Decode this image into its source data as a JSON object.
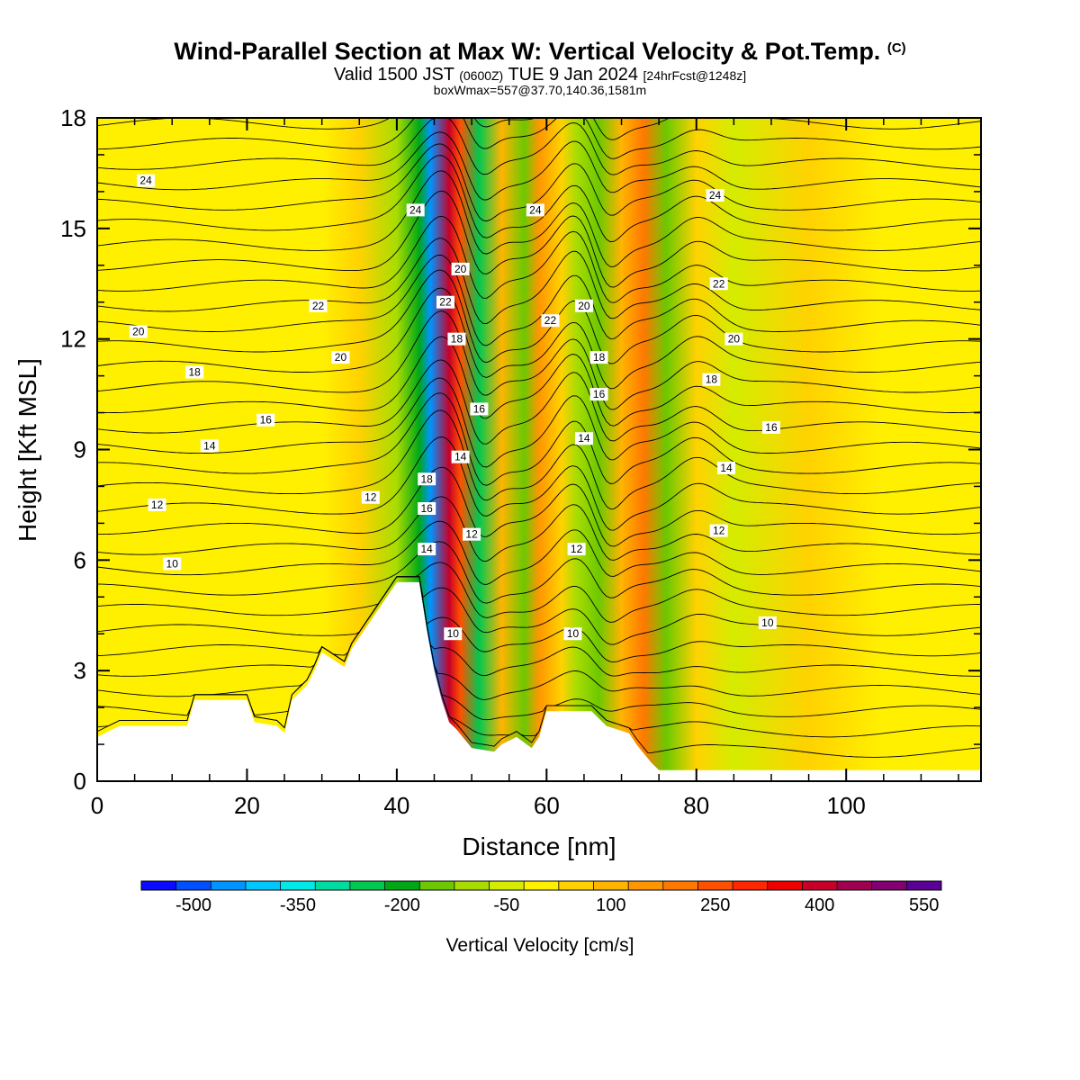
{
  "header": {
    "title": "Wind-Parallel Section at Max W: Vertical Velocity & Pot.Temp.",
    "copyright": "(C)",
    "valid_prefix": "Valid 1500 JST",
    "valid_zulu": "(0600Z)",
    "valid_date": "TUE 9 Jan 2024",
    "forecast": "[24hrFcst@1248z]",
    "box_info": "boxWmax=557@37.70,140.36,1581m"
  },
  "chart_data": {
    "type": "heatmap",
    "xlabel": "Distance [nm]",
    "ylabel": "Height [Kft MSL]",
    "xlim": [
      0,
      118
    ],
    "ylim": [
      0,
      18
    ],
    "x_ticks": [
      "0",
      "20",
      "40",
      "60",
      "80",
      "100"
    ],
    "y_ticks": [
      "0",
      "3",
      "6",
      "9",
      "12",
      "15",
      "18"
    ],
    "colorbar": {
      "title": "Vertical Velocity [cm/s]",
      "tick_labels": [
        "-500",
        "-350",
        "-200",
        "-50",
        "100",
        "250",
        "400",
        "550"
      ],
      "colors": [
        "#0a0aff",
        "#0050ff",
        "#0094ff",
        "#00c8ff",
        "#00e8e8",
        "#00dca0",
        "#00c850",
        "#00a818",
        "#6cc800",
        "#a8dc00",
        "#d4ec00",
        "#fff000",
        "#ffd200",
        "#ffb400",
        "#ff9600",
        "#ff7800",
        "#ff5000",
        "#ff2800",
        "#ee0000",
        "#c80028",
        "#a00050",
        "#820070",
        "#5a0096"
      ]
    },
    "vertical_velocity_bands": [
      {
        "x": 0,
        "w": 0
      },
      {
        "x": 12,
        "w": 20
      },
      {
        "x": 20,
        "w": -20
      },
      {
        "x": 30,
        "w": 15
      },
      {
        "x": 35,
        "w": 70
      },
      {
        "x": 40,
        "w": -80
      },
      {
        "x": 43,
        "w": -200
      },
      {
        "x": 44.5,
        "w": -470
      },
      {
        "x": 47,
        "w": 420
      },
      {
        "x": 48.5,
        "w": 250
      },
      {
        "x": 51,
        "w": -240
      },
      {
        "x": 54,
        "w": 80
      },
      {
        "x": 57,
        "w": -130
      },
      {
        "x": 59,
        "w": 160
      },
      {
        "x": 62,
        "w": 40
      },
      {
        "x": 64,
        "w": -100
      },
      {
        "x": 67,
        "w": -150
      },
      {
        "x": 70,
        "w": 80
      },
      {
        "x": 73,
        "w": 210
      },
      {
        "x": 76,
        "w": -140
      },
      {
        "x": 80,
        "w": 40
      },
      {
        "x": 85,
        "w": -30
      },
      {
        "x": 95,
        "w": 25
      },
      {
        "x": 105,
        "w": -15
      },
      {
        "x": 118,
        "w": 15
      }
    ],
    "terrain_kft": [
      {
        "x": 0,
        "h": 1.2
      },
      {
        "x": 3,
        "h": 1.5
      },
      {
        "x": 12,
        "h": 1.5
      },
      {
        "x": 13,
        "h": 2.2
      },
      {
        "x": 20,
        "h": 2.2
      },
      {
        "x": 21,
        "h": 1.6
      },
      {
        "x": 24,
        "h": 1.5
      },
      {
        "x": 25,
        "h": 1.3
      },
      {
        "x": 26,
        "h": 2.2
      },
      {
        "x": 28,
        "h": 2.6
      },
      {
        "x": 29,
        "h": 3.0
      },
      {
        "x": 30,
        "h": 3.5
      },
      {
        "x": 33,
        "h": 3.1
      },
      {
        "x": 34,
        "h": 3.6
      },
      {
        "x": 35,
        "h": 3.9
      },
      {
        "x": 36,
        "h": 4.2
      },
      {
        "x": 37,
        "h": 4.5
      },
      {
        "x": 38,
        "h": 4.8
      },
      {
        "x": 40,
        "h": 5.4
      },
      {
        "x": 43,
        "h": 5.4
      },
      {
        "x": 44,
        "h": 4.1
      },
      {
        "x": 45,
        "h": 3.0
      },
      {
        "x": 46,
        "h": 2.2
      },
      {
        "x": 47,
        "h": 1.6
      },
      {
        "x": 48,
        "h": 1.4
      },
      {
        "x": 50,
        "h": 0.9
      },
      {
        "x": 53,
        "h": 0.8
      },
      {
        "x": 54,
        "h": 1.0
      },
      {
        "x": 56,
        "h": 1.2
      },
      {
        "x": 58,
        "h": 0.9
      },
      {
        "x": 59,
        "h": 1.2
      },
      {
        "x": 60,
        "h": 1.9
      },
      {
        "x": 66,
        "h": 1.9
      },
      {
        "x": 68,
        "h": 1.5
      },
      {
        "x": 71,
        "h": 1.3
      },
      {
        "x": 72,
        "h": 1.0
      },
      {
        "x": 74,
        "h": 0.5
      },
      {
        "x": 75,
        "h": 0.3
      },
      {
        "x": 118,
        "h": 0.3
      }
    ],
    "theta_contour_labels": [
      {
        "x": 6.5,
        "y": 16.3,
        "t": "24"
      },
      {
        "x": 42.5,
        "y": 15.5,
        "t": "24"
      },
      {
        "x": 58.5,
        "y": 15.5,
        "t": "24"
      },
      {
        "x": 82.5,
        "y": 15.9,
        "t": "24"
      },
      {
        "x": 48.5,
        "y": 13.9,
        "t": "20"
      },
      {
        "x": 46.5,
        "y": 13.0,
        "t": "22"
      },
      {
        "x": 29.5,
        "y": 12.9,
        "t": "22"
      },
      {
        "x": 83,
        "y": 13.5,
        "t": "22"
      },
      {
        "x": 60.5,
        "y": 12.5,
        "t": "22"
      },
      {
        "x": 65,
        "y": 12.9,
        "t": "20"
      },
      {
        "x": 5.5,
        "y": 12.2,
        "t": "20"
      },
      {
        "x": 32.5,
        "y": 11.5,
        "t": "20"
      },
      {
        "x": 85,
        "y": 12.0,
        "t": "20"
      },
      {
        "x": 48,
        "y": 12.0,
        "t": "18"
      },
      {
        "x": 67,
        "y": 11.5,
        "t": "18"
      },
      {
        "x": 13,
        "y": 11.1,
        "t": "18"
      },
      {
        "x": 82,
        "y": 10.9,
        "t": "18"
      },
      {
        "x": 67,
        "y": 10.5,
        "t": "16"
      },
      {
        "x": 51,
        "y": 10.1,
        "t": "16"
      },
      {
        "x": 22.5,
        "y": 9.8,
        "t": "16"
      },
      {
        "x": 90,
        "y": 9.6,
        "t": "16"
      },
      {
        "x": 15,
        "y": 9.1,
        "t": "14"
      },
      {
        "x": 65,
        "y": 9.3,
        "t": "14"
      },
      {
        "x": 48.5,
        "y": 8.8,
        "t": "14"
      },
      {
        "x": 84,
        "y": 8.5,
        "t": "14"
      },
      {
        "x": 44,
        "y": 8.2,
        "t": "18"
      },
      {
        "x": 44,
        "y": 7.4,
        "t": "16"
      },
      {
        "x": 8,
        "y": 7.5,
        "t": "12"
      },
      {
        "x": 36.5,
        "y": 7.7,
        "t": "12"
      },
      {
        "x": 50,
        "y": 6.7,
        "t": "12"
      },
      {
        "x": 83,
        "y": 6.8,
        "t": "12"
      },
      {
        "x": 44,
        "y": 6.3,
        "t": "14"
      },
      {
        "x": 64,
        "y": 6.3,
        "t": "12"
      },
      {
        "x": 10,
        "y": 5.9,
        "t": "10"
      },
      {
        "x": 89.5,
        "y": 4.3,
        "t": "10"
      },
      {
        "x": 47.5,
        "y": 4.0,
        "t": "10"
      },
      {
        "x": 63.5,
        "y": 4.0,
        "t": "10"
      }
    ]
  }
}
